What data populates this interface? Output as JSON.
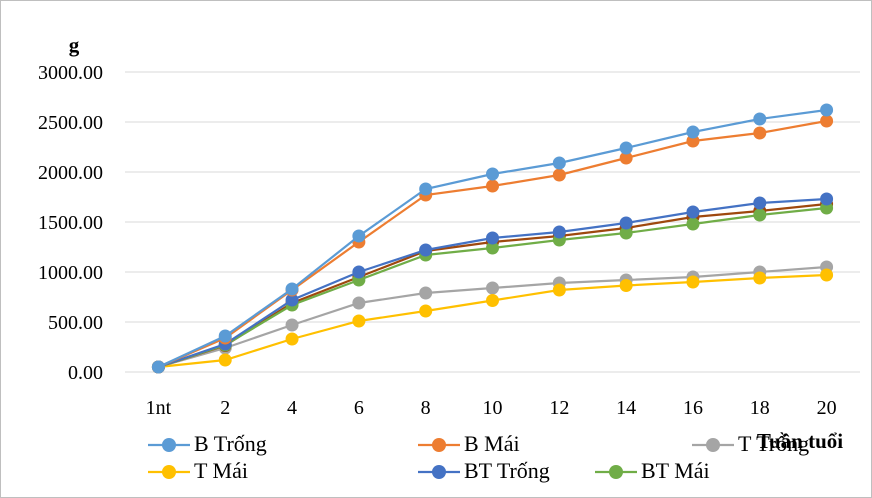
{
  "chart_data": {
    "type": "line",
    "ylabel": "g",
    "xlabel": "Tuần tuổi",
    "categories": [
      "1nt",
      "2",
      "4",
      "6",
      "8",
      "10",
      "12",
      "14",
      "16",
      "18",
      "20"
    ],
    "ylim": [
      0,
      3000
    ],
    "yticks": [
      "0.00",
      "500.00",
      "1000.00",
      "1500.00",
      "2000.00",
      "2500.00",
      "3000.00"
    ],
    "grid": true,
    "legend_position": "bottom",
    "series": [
      {
        "name": "B Trống",
        "color": "#5b9bd5",
        "values": [
          50,
          360,
          830,
          1360,
          1830,
          1980,
          2090,
          2240,
          2400,
          2530,
          2620
        ]
      },
      {
        "name": "B Mái",
        "color": "#ed7d31",
        "values": [
          50,
          340,
          820,
          1300,
          1770,
          1860,
          1970,
          2140,
          2310,
          2390,
          2510
        ]
      },
      {
        "name": "T Trống",
        "color": "#a5a5a5",
        "values": [
          50,
          240,
          470,
          690,
          790,
          840,
          890,
          920,
          950,
          1000,
          1050
        ]
      },
      {
        "name": "T Mái",
        "color": "#ffc000",
        "values": [
          50,
          120,
          330,
          510,
          610,
          715,
          820,
          865,
          900,
          940,
          970
        ]
      },
      {
        "name": "BT Trống",
        "color": "#4472c4",
        "values": [
          50,
          280,
          720,
          1000,
          1220,
          1340,
          1400,
          1490,
          1600,
          1690,
          1730
        ]
      },
      {
        "name": "BT Mái",
        "color": "#70ad47",
        "values": [
          50,
          270,
          670,
          920,
          1170,
          1240,
          1320,
          1390,
          1480,
          1570,
          1640
        ]
      },
      {
        "name": "",
        "color": "#9e480e",
        "values": [
          50,
          265,
          690,
          950,
          1210,
          1300,
          1360,
          1440,
          1550,
          1610,
          1680
        ]
      }
    ]
  }
}
